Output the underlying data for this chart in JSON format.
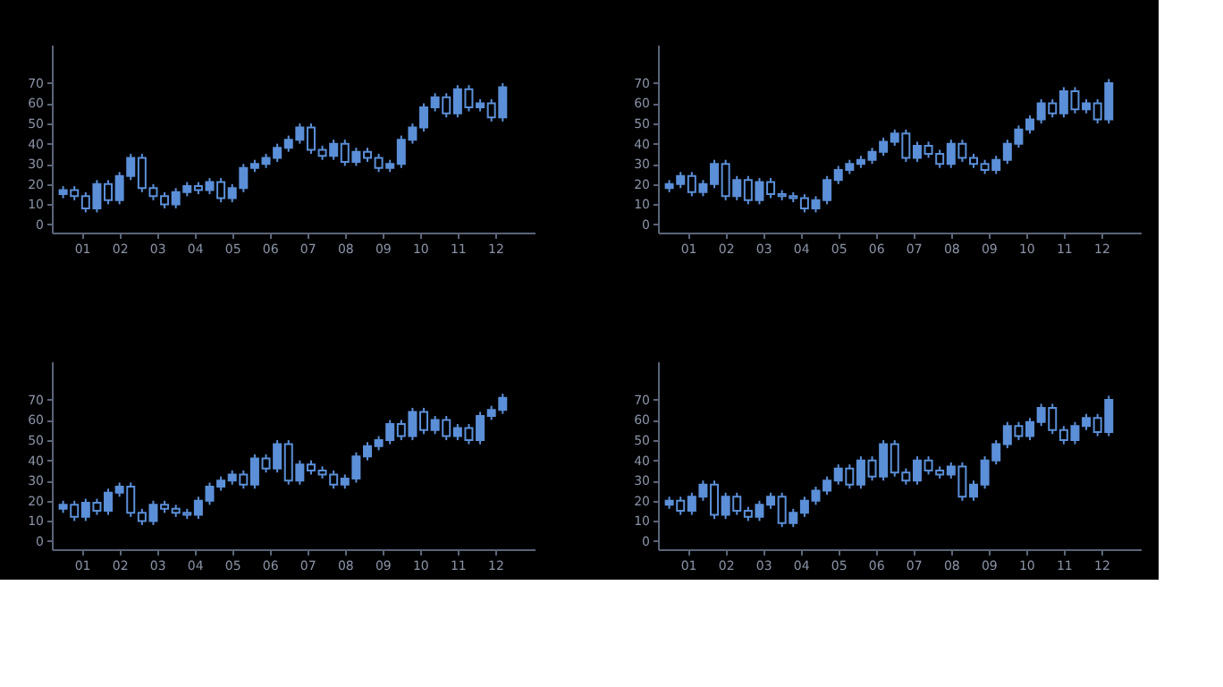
{
  "chart_data": [
    {
      "type": "candlestick",
      "color": "#5b8fd8",
      "xlim": [
        0.2,
        13.05
      ],
      "ylim": [
        -4,
        89
      ],
      "grid": false,
      "xticks": [
        {
          "value": 1,
          "label": "01"
        },
        {
          "value": 2,
          "label": "02"
        },
        {
          "value": 3,
          "label": "03"
        },
        {
          "value": 4,
          "label": "04"
        },
        {
          "value": 5,
          "label": "05"
        },
        {
          "value": 6,
          "label": "06"
        },
        {
          "value": 7,
          "label": "07"
        },
        {
          "value": 8,
          "label": "08"
        },
        {
          "value": 9,
          "label": "09"
        },
        {
          "value": 10,
          "label": "10"
        },
        {
          "value": 11,
          "label": "11"
        },
        {
          "value": 12,
          "label": "12"
        }
      ],
      "yticks": [
        0,
        10,
        20,
        30,
        40,
        50,
        60,
        70
      ],
      "x": [
        0.5,
        0.8,
        1.1,
        1.4,
        1.7,
        2,
        2.3,
        2.6,
        2.9,
        3.2,
        3.5,
        3.8,
        4.1,
        4.4,
        4.7,
        5,
        5.3,
        5.6,
        5.9,
        6.2,
        6.5,
        6.8,
        7.1,
        7.4,
        7.7,
        8,
        8.3,
        8.6,
        8.9,
        9.2,
        9.5,
        9.8,
        10.1,
        10.4,
        10.7,
        11,
        11.3,
        11.6,
        11.9,
        12.2
      ],
      "ohlc": [
        [
          15,
          19,
          13,
          17
        ],
        [
          17,
          19,
          12,
          14
        ],
        [
          14,
          16,
          6,
          8
        ],
        [
          8,
          22,
          6,
          20
        ],
        [
          20,
          22,
          10,
          12
        ],
        [
          12,
          26,
          10,
          24
        ],
        [
          24,
          35,
          22,
          33
        ],
        [
          33,
          35,
          16,
          18
        ],
        [
          18,
          20,
          12,
          14
        ],
        [
          14,
          16,
          8,
          10
        ],
        [
          10,
          18,
          8,
          16
        ],
        [
          16,
          21,
          14,
          19
        ],
        [
          19,
          21,
          15,
          17
        ],
        [
          17,
          23,
          15,
          21
        ],
        [
          21,
          23,
          11,
          13
        ],
        [
          13,
          20,
          11,
          18
        ],
        [
          18,
          30,
          16,
          28
        ],
        [
          28,
          32,
          26,
          30
        ],
        [
          30,
          35,
          28,
          33
        ],
        [
          33,
          40,
          31,
          38
        ],
        [
          38,
          44,
          36,
          42
        ],
        [
          42,
          50,
          40,
          48
        ],
        [
          48,
          50,
          35,
          37
        ],
        [
          37,
          39,
          32,
          34
        ],
        [
          34,
          42,
          32,
          40
        ],
        [
          40,
          42,
          29,
          31
        ],
        [
          31,
          38,
          29,
          36
        ],
        [
          36,
          38,
          31,
          33
        ],
        [
          33,
          35,
          26,
          28
        ],
        [
          28,
          32,
          26,
          30
        ],
        [
          30,
          44,
          28,
          42
        ],
        [
          42,
          50,
          40,
          48
        ],
        [
          48,
          60,
          46,
          58
        ],
        [
          58,
          65,
          56,
          63
        ],
        [
          63,
          65,
          53,
          55
        ],
        [
          55,
          69,
          53,
          67
        ],
        [
          67,
          69,
          56,
          58
        ],
        [
          58,
          62,
          56,
          60
        ],
        [
          60,
          62,
          51,
          53
        ],
        [
          53,
          70,
          51,
          68
        ]
      ]
    },
    {
      "type": "candlestick",
      "color": "#5b8fd8",
      "xlim": [
        0.2,
        13.05
      ],
      "ylim": [
        -4,
        89
      ],
      "grid": false,
      "xticks": [
        {
          "value": 1,
          "label": "01"
        },
        {
          "value": 2,
          "label": "02"
        },
        {
          "value": 3,
          "label": "03"
        },
        {
          "value": 4,
          "label": "04"
        },
        {
          "value": 5,
          "label": "05"
        },
        {
          "value": 6,
          "label": "06"
        },
        {
          "value": 7,
          "label": "07"
        },
        {
          "value": 8,
          "label": "08"
        },
        {
          "value": 9,
          "label": "09"
        },
        {
          "value": 10,
          "label": "10"
        },
        {
          "value": 11,
          "label": "11"
        },
        {
          "value": 12,
          "label": "12"
        }
      ],
      "yticks": [
        0,
        10,
        20,
        30,
        40,
        50,
        60,
        70
      ],
      "x": [
        0.5,
        0.8,
        1.1,
        1.4,
        1.7,
        2,
        2.3,
        2.6,
        2.9,
        3.2,
        3.5,
        3.8,
        4.1,
        4.4,
        4.7,
        5,
        5.3,
        5.6,
        5.9,
        6.2,
        6.5,
        6.8,
        7.1,
        7.4,
        7.7,
        8,
        8.3,
        8.6,
        8.9,
        9.2,
        9.5,
        9.8,
        10.1,
        10.4,
        10.7,
        11,
        11.3,
        11.6,
        11.9,
        12.2
      ],
      "ohlc": [
        [
          18,
          22,
          16,
          20
        ],
        [
          20,
          26,
          18,
          24
        ],
        [
          24,
          26,
          14,
          16
        ],
        [
          16,
          22,
          14,
          20
        ],
        [
          20,
          32,
          18,
          30
        ],
        [
          30,
          32,
          12,
          14
        ],
        [
          14,
          24,
          12,
          22
        ],
        [
          22,
          24,
          10,
          12
        ],
        [
          12,
          23,
          10,
          21
        ],
        [
          21,
          23,
          13,
          15
        ],
        [
          15,
          17,
          12,
          14
        ],
        [
          14,
          16,
          11,
          13
        ],
        [
          13,
          15,
          6,
          8
        ],
        [
          8,
          14,
          6,
          12
        ],
        [
          12,
          24,
          10,
          22
        ],
        [
          22,
          29,
          20,
          27
        ],
        [
          27,
          32,
          25,
          30
        ],
        [
          30,
          34,
          28,
          32
        ],
        [
          32,
          38,
          30,
          36
        ],
        [
          36,
          43,
          34,
          41
        ],
        [
          41,
          47,
          39,
          45
        ],
        [
          45,
          47,
          31,
          33
        ],
        [
          33,
          41,
          31,
          39
        ],
        [
          39,
          41,
          33,
          35
        ],
        [
          35,
          37,
          28,
          30
        ],
        [
          30,
          42,
          28,
          40
        ],
        [
          40,
          42,
          31,
          33
        ],
        [
          33,
          35,
          28,
          30
        ],
        [
          30,
          32,
          25,
          27
        ],
        [
          27,
          34,
          25,
          32
        ],
        [
          32,
          42,
          30,
          40
        ],
        [
          40,
          49,
          38,
          47
        ],
        [
          47,
          54,
          45,
          52
        ],
        [
          52,
          62,
          50,
          60
        ],
        [
          60,
          62,
          53,
          55
        ],
        [
          55,
          68,
          53,
          66
        ],
        [
          66,
          68,
          55,
          57
        ],
        [
          57,
          62,
          55,
          60
        ],
        [
          60,
          62,
          50,
          52
        ],
        [
          52,
          72,
          50,
          70
        ]
      ]
    },
    {
      "type": "candlestick",
      "color": "#5b8fd8",
      "xlim": [
        0.2,
        13.05
      ],
      "ylim": [
        -4,
        89
      ],
      "grid": false,
      "xticks": [
        {
          "value": 1,
          "label": "01"
        },
        {
          "value": 2,
          "label": "02"
        },
        {
          "value": 3,
          "label": "03"
        },
        {
          "value": 4,
          "label": "04"
        },
        {
          "value": 5,
          "label": "05"
        },
        {
          "value": 6,
          "label": "06"
        },
        {
          "value": 7,
          "label": "07"
        },
        {
          "value": 8,
          "label": "08"
        },
        {
          "value": 9,
          "label": "09"
        },
        {
          "value": 10,
          "label": "10"
        },
        {
          "value": 11,
          "label": "11"
        },
        {
          "value": 12,
          "label": "12"
        }
      ],
      "yticks": [
        0,
        10,
        20,
        30,
        40,
        50,
        60,
        70
      ],
      "x": [
        0.5,
        0.8,
        1.1,
        1.4,
        1.7,
        2,
        2.3,
        2.6,
        2.9,
        3.2,
        3.5,
        3.8,
        4.1,
        4.4,
        4.7,
        5,
        5.3,
        5.6,
        5.9,
        6.2,
        6.5,
        6.8,
        7.1,
        7.4,
        7.7,
        8,
        8.3,
        8.6,
        8.9,
        9.2,
        9.5,
        9.8,
        10.1,
        10.4,
        10.7,
        11,
        11.3,
        11.6,
        11.9,
        12.2
      ],
      "ohlc": [
        [
          16,
          20,
          14,
          18
        ],
        [
          18,
          20,
          10,
          12
        ],
        [
          12,
          21,
          10,
          19
        ],
        [
          19,
          21,
          13,
          15
        ],
        [
          15,
          26,
          13,
          24
        ],
        [
          24,
          29,
          22,
          27
        ],
        [
          27,
          29,
          12,
          14
        ],
        [
          14,
          16,
          8,
          10
        ],
        [
          10,
          20,
          8,
          18
        ],
        [
          18,
          20,
          14,
          16
        ],
        [
          16,
          18,
          12,
          14
        ],
        [
          14,
          16,
          11,
          13
        ],
        [
          13,
          22,
          11,
          20
        ],
        [
          20,
          29,
          18,
          27
        ],
        [
          27,
          32,
          25,
          30
        ],
        [
          30,
          35,
          28,
          33
        ],
        [
          33,
          35,
          26,
          28
        ],
        [
          28,
          43,
          26,
          41
        ],
        [
          41,
          43,
          34,
          36
        ],
        [
          36,
          50,
          34,
          48
        ],
        [
          48,
          50,
          28,
          30
        ],
        [
          30,
          40,
          28,
          38
        ],
        [
          38,
          40,
          33,
          35
        ],
        [
          35,
          37,
          31,
          33
        ],
        [
          33,
          35,
          26,
          28
        ],
        [
          28,
          33,
          26,
          31
        ],
        [
          31,
          44,
          29,
          42
        ],
        [
          42,
          49,
          40,
          47
        ],
        [
          47,
          52,
          45,
          50
        ],
        [
          50,
          60,
          48,
          58
        ],
        [
          58,
          60,
          50,
          52
        ],
        [
          52,
          66,
          50,
          64
        ],
        [
          64,
          66,
          53,
          55
        ],
        [
          55,
          62,
          53,
          60
        ],
        [
          60,
          62,
          50,
          52
        ],
        [
          52,
          58,
          50,
          56
        ],
        [
          56,
          58,
          48,
          50
        ],
        [
          50,
          64,
          48,
          62
        ],
        [
          62,
          67,
          60,
          65
        ],
        [
          65,
          73,
          63,
          71
        ]
      ]
    },
    {
      "type": "candlestick",
      "color": "#5b8fd8",
      "xlim": [
        0.2,
        13.05
      ],
      "ylim": [
        -4,
        89
      ],
      "grid": false,
      "xticks": [
        {
          "value": 1,
          "label": "01"
        },
        {
          "value": 2,
          "label": "02"
        },
        {
          "value": 3,
          "label": "03"
        },
        {
          "value": 4,
          "label": "04"
        },
        {
          "value": 5,
          "label": "05"
        },
        {
          "value": 6,
          "label": "06"
        },
        {
          "value": 7,
          "label": "07"
        },
        {
          "value": 8,
          "label": "08"
        },
        {
          "value": 9,
          "label": "09"
        },
        {
          "value": 10,
          "label": "10"
        },
        {
          "value": 11,
          "label": "11"
        },
        {
          "value": 12,
          "label": "12"
        }
      ],
      "yticks": [
        0,
        10,
        20,
        30,
        40,
        50,
        60,
        70
      ],
      "x": [
        0.5,
        0.8,
        1.1,
        1.4,
        1.7,
        2,
        2.3,
        2.6,
        2.9,
        3.2,
        3.5,
        3.8,
        4.1,
        4.4,
        4.7,
        5,
        5.3,
        5.6,
        5.9,
        6.2,
        6.5,
        6.8,
        7.1,
        7.4,
        7.7,
        8,
        8.3,
        8.6,
        8.9,
        9.2,
        9.5,
        9.8,
        10.1,
        10.4,
        10.7,
        11,
        11.3,
        11.6,
        11.9,
        12.2
      ],
      "ohlc": [
        [
          18,
          22,
          16,
          20
        ],
        [
          20,
          22,
          13,
          15
        ],
        [
          15,
          24,
          13,
          22
        ],
        [
          22,
          30,
          20,
          28
        ],
        [
          28,
          30,
          11,
          13
        ],
        [
          13,
          24,
          11,
          22
        ],
        [
          22,
          24,
          13,
          15
        ],
        [
          15,
          17,
          10,
          12
        ],
        [
          12,
          20,
          10,
          18
        ],
        [
          18,
          24,
          16,
          22
        ],
        [
          22,
          24,
          7,
          9
        ],
        [
          9,
          16,
          7,
          14
        ],
        [
          14,
          22,
          12,
          20
        ],
        [
          20,
          27,
          18,
          25
        ],
        [
          25,
          32,
          23,
          30
        ],
        [
          30,
          38,
          28,
          36
        ],
        [
          36,
          38,
          26,
          28
        ],
        [
          28,
          42,
          26,
          40
        ],
        [
          40,
          42,
          30,
          32
        ],
        [
          32,
          50,
          30,
          48
        ],
        [
          48,
          50,
          32,
          34
        ],
        [
          34,
          36,
          28,
          30
        ],
        [
          30,
          42,
          28,
          40
        ],
        [
          40,
          42,
          33,
          35
        ],
        [
          35,
          37,
          31,
          33
        ],
        [
          33,
          39,
          31,
          37
        ],
        [
          37,
          39,
          20,
          22
        ],
        [
          22,
          30,
          20,
          28
        ],
        [
          28,
          42,
          26,
          40
        ],
        [
          40,
          50,
          38,
          48
        ],
        [
          48,
          59,
          46,
          57
        ],
        [
          57,
          59,
          50,
          52
        ],
        [
          52,
          61,
          50,
          59
        ],
        [
          59,
          68,
          57,
          66
        ],
        [
          66,
          68,
          53,
          55
        ],
        [
          55,
          57,
          48,
          50
        ],
        [
          50,
          59,
          48,
          57
        ],
        [
          57,
          63,
          55,
          61
        ],
        [
          61,
          63,
          52,
          54
        ],
        [
          54,
          72,
          52,
          70
        ]
      ]
    }
  ]
}
